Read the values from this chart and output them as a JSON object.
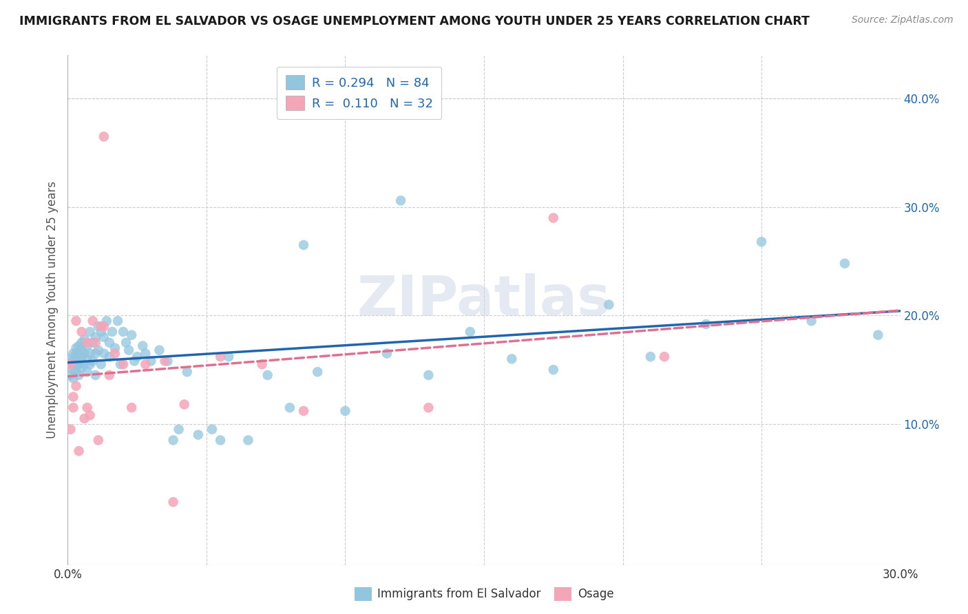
{
  "title": "IMMIGRANTS FROM EL SALVADOR VS OSAGE UNEMPLOYMENT AMONG YOUTH UNDER 25 YEARS CORRELATION CHART",
  "source": "Source: ZipAtlas.com",
  "ylabel": "Unemployment Among Youth under 25 years",
  "xlim": [
    0.0,
    0.3
  ],
  "ylim": [
    -0.03,
    0.44
  ],
  "yticks_right": [
    0.1,
    0.2,
    0.3,
    0.4
  ],
  "blue_color": "#92c5de",
  "pink_color": "#f4a5b8",
  "blue_line_color": "#2166ac",
  "pink_line_color": "#e07090",
  "R_blue": 0.294,
  "N_blue": 84,
  "R_pink": 0.11,
  "N_pink": 32,
  "blue_scatter_x": [
    0.001,
    0.001,
    0.001,
    0.002,
    0.002,
    0.002,
    0.002,
    0.003,
    0.003,
    0.003,
    0.003,
    0.003,
    0.004,
    0.004,
    0.004,
    0.004,
    0.005,
    0.005,
    0.005,
    0.005,
    0.006,
    0.006,
    0.006,
    0.007,
    0.007,
    0.007,
    0.008,
    0.008,
    0.008,
    0.009,
    0.009,
    0.01,
    0.01,
    0.01,
    0.011,
    0.011,
    0.012,
    0.012,
    0.013,
    0.013,
    0.014,
    0.015,
    0.015,
    0.016,
    0.017,
    0.018,
    0.019,
    0.02,
    0.021,
    0.022,
    0.023,
    0.024,
    0.025,
    0.027,
    0.028,
    0.03,
    0.033,
    0.036,
    0.04,
    0.043,
    0.047,
    0.052,
    0.058,
    0.065,
    0.072,
    0.08,
    0.09,
    0.1,
    0.115,
    0.13,
    0.145,
    0.16,
    0.175,
    0.195,
    0.21,
    0.23,
    0.25,
    0.268,
    0.28,
    0.292,
    0.085,
    0.038,
    0.055,
    0.12
  ],
  "blue_scatter_y": [
    0.155,
    0.16,
    0.145,
    0.165,
    0.15,
    0.158,
    0.142,
    0.162,
    0.155,
    0.17,
    0.148,
    0.165,
    0.155,
    0.172,
    0.158,
    0.145,
    0.162,
    0.175,
    0.152,
    0.168,
    0.178,
    0.155,
    0.165,
    0.16,
    0.172,
    0.148,
    0.185,
    0.165,
    0.155,
    0.175,
    0.158,
    0.18,
    0.165,
    0.145,
    0.19,
    0.168,
    0.185,
    0.155,
    0.18,
    0.165,
    0.195,
    0.175,
    0.162,
    0.185,
    0.17,
    0.195,
    0.155,
    0.185,
    0.175,
    0.168,
    0.182,
    0.158,
    0.162,
    0.172,
    0.165,
    0.158,
    0.168,
    0.158,
    0.095,
    0.148,
    0.09,
    0.095,
    0.162,
    0.085,
    0.145,
    0.115,
    0.148,
    0.112,
    0.165,
    0.145,
    0.185,
    0.16,
    0.15,
    0.21,
    0.162,
    0.192,
    0.268,
    0.195,
    0.248,
    0.182,
    0.265,
    0.085,
    0.085,
    0.306
  ],
  "pink_scatter_x": [
    0.001,
    0.001,
    0.002,
    0.002,
    0.003,
    0.003,
    0.004,
    0.005,
    0.006,
    0.007,
    0.007,
    0.008,
    0.009,
    0.01,
    0.011,
    0.012,
    0.013,
    0.015,
    0.017,
    0.02,
    0.023,
    0.028,
    0.035,
    0.042,
    0.055,
    0.07,
    0.085,
    0.13,
    0.175,
    0.215,
    0.013,
    0.038
  ],
  "pink_scatter_y": [
    0.155,
    0.095,
    0.115,
    0.125,
    0.135,
    0.195,
    0.075,
    0.185,
    0.105,
    0.115,
    0.175,
    0.108,
    0.195,
    0.175,
    0.085,
    0.19,
    0.19,
    0.145,
    0.165,
    0.155,
    0.115,
    0.155,
    0.158,
    0.118,
    0.162,
    0.155,
    0.112,
    0.115,
    0.29,
    0.162,
    0.365,
    0.028
  ],
  "background_color": "#ffffff",
  "grid_color": "#cccccc",
  "watermark": "ZIPatlas",
  "legend_label_blue": "Immigrants from El Salvador",
  "legend_label_pink": "Osage"
}
